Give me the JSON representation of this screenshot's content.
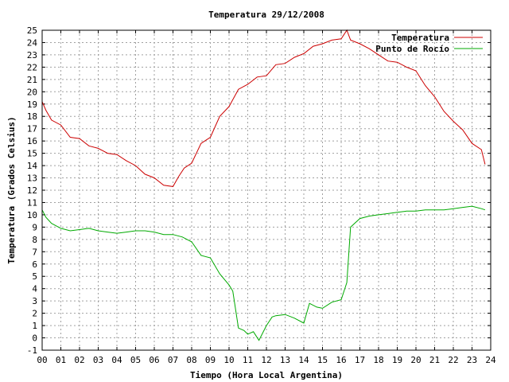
{
  "chart_data": {
    "type": "line",
    "title": "Temperatura 29/12/2008",
    "xlabel": "Tiempo (Hora Local Argentina)",
    "ylabel": "Temperatura (Grados Celsius)",
    "xlim": [
      0,
      24
    ],
    "ylim": [
      -1,
      25
    ],
    "x_ticks": [
      "00",
      "01",
      "02",
      "03",
      "04",
      "05",
      "06",
      "07",
      "08",
      "09",
      "10",
      "11",
      "12",
      "13",
      "14",
      "15",
      "16",
      "17",
      "18",
      "19",
      "20",
      "21",
      "22",
      "23",
      "24"
    ],
    "y_ticks": [
      -1,
      0,
      1,
      2,
      3,
      4,
      5,
      6,
      7,
      8,
      9,
      10,
      11,
      12,
      13,
      14,
      15,
      16,
      17,
      18,
      19,
      20,
      21,
      22,
      23,
      24,
      25
    ],
    "grid": true,
    "legend_position": "top-right",
    "series": [
      {
        "name": "Temperatura",
        "color": "#cc0000",
        "x": [
          0.0,
          0.2,
          0.5,
          1.0,
          1.5,
          2.0,
          2.5,
          3.0,
          3.5,
          4.0,
          4.5,
          5.0,
          5.5,
          6.0,
          6.5,
          7.0,
          7.3,
          7.6,
          8.0,
          8.5,
          9.0,
          9.5,
          10.0,
          10.5,
          11.0,
          11.5,
          12.0,
          12.5,
          13.0,
          13.5,
          14.0,
          14.5,
          15.0,
          15.5,
          16.0,
          16.3,
          16.5,
          17.0,
          17.5,
          18.0,
          18.5,
          19.0,
          19.5,
          20.0,
          20.5,
          21.0,
          21.5,
          22.0,
          22.5,
          23.0,
          23.5,
          23.7
        ],
        "y": [
          19.2,
          18.5,
          17.7,
          17.3,
          16.3,
          16.2,
          15.6,
          15.4,
          15.0,
          14.9,
          14.4,
          14.0,
          13.3,
          13.0,
          12.4,
          12.3,
          13.1,
          13.8,
          14.2,
          15.8,
          16.3,
          18.0,
          18.8,
          20.2,
          20.6,
          21.2,
          21.3,
          22.2,
          22.3,
          22.8,
          23.1,
          23.7,
          23.9,
          24.2,
          24.3,
          25.0,
          24.2,
          23.9,
          23.5,
          23.0,
          22.5,
          22.4,
          22.0,
          21.7,
          20.5,
          19.6,
          18.4,
          17.6,
          16.9,
          15.8,
          15.3,
          14.1
        ]
      },
      {
        "name": "Punto de Rocío",
        "color": "#00aa00",
        "x": [
          0.0,
          0.2,
          0.5,
          1.0,
          1.5,
          2.0,
          2.5,
          3.0,
          3.5,
          4.0,
          4.5,
          5.0,
          5.5,
          6.0,
          6.5,
          7.0,
          7.5,
          8.0,
          8.5,
          9.0,
          9.5,
          10.0,
          10.2,
          10.5,
          10.8,
          11.0,
          11.3,
          11.6,
          11.8,
          12.0,
          12.3,
          12.5,
          13.0,
          13.5,
          14.0,
          14.3,
          14.7,
          15.0,
          15.5,
          16.0,
          16.3,
          16.5,
          17.0,
          17.5,
          18.0,
          18.5,
          19.0,
          19.5,
          20.0,
          20.5,
          21.0,
          21.5,
          22.0,
          22.5,
          23.0,
          23.5,
          23.7
        ],
        "y": [
          10.4,
          9.8,
          9.3,
          8.9,
          8.7,
          8.8,
          8.9,
          8.7,
          8.6,
          8.5,
          8.6,
          8.7,
          8.7,
          8.6,
          8.4,
          8.4,
          8.2,
          7.8,
          6.7,
          6.5,
          5.2,
          4.3,
          3.8,
          0.8,
          0.6,
          0.3,
          0.5,
          -0.2,
          0.4,
          1.0,
          1.7,
          1.8,
          1.9,
          1.6,
          1.2,
          2.8,
          2.5,
          2.4,
          2.9,
          3.1,
          4.5,
          9.0,
          9.7,
          9.9,
          10.0,
          10.1,
          10.2,
          10.3,
          10.3,
          10.4,
          10.4,
          10.4,
          10.5,
          10.6,
          10.7,
          10.5,
          10.4
        ]
      }
    ]
  }
}
